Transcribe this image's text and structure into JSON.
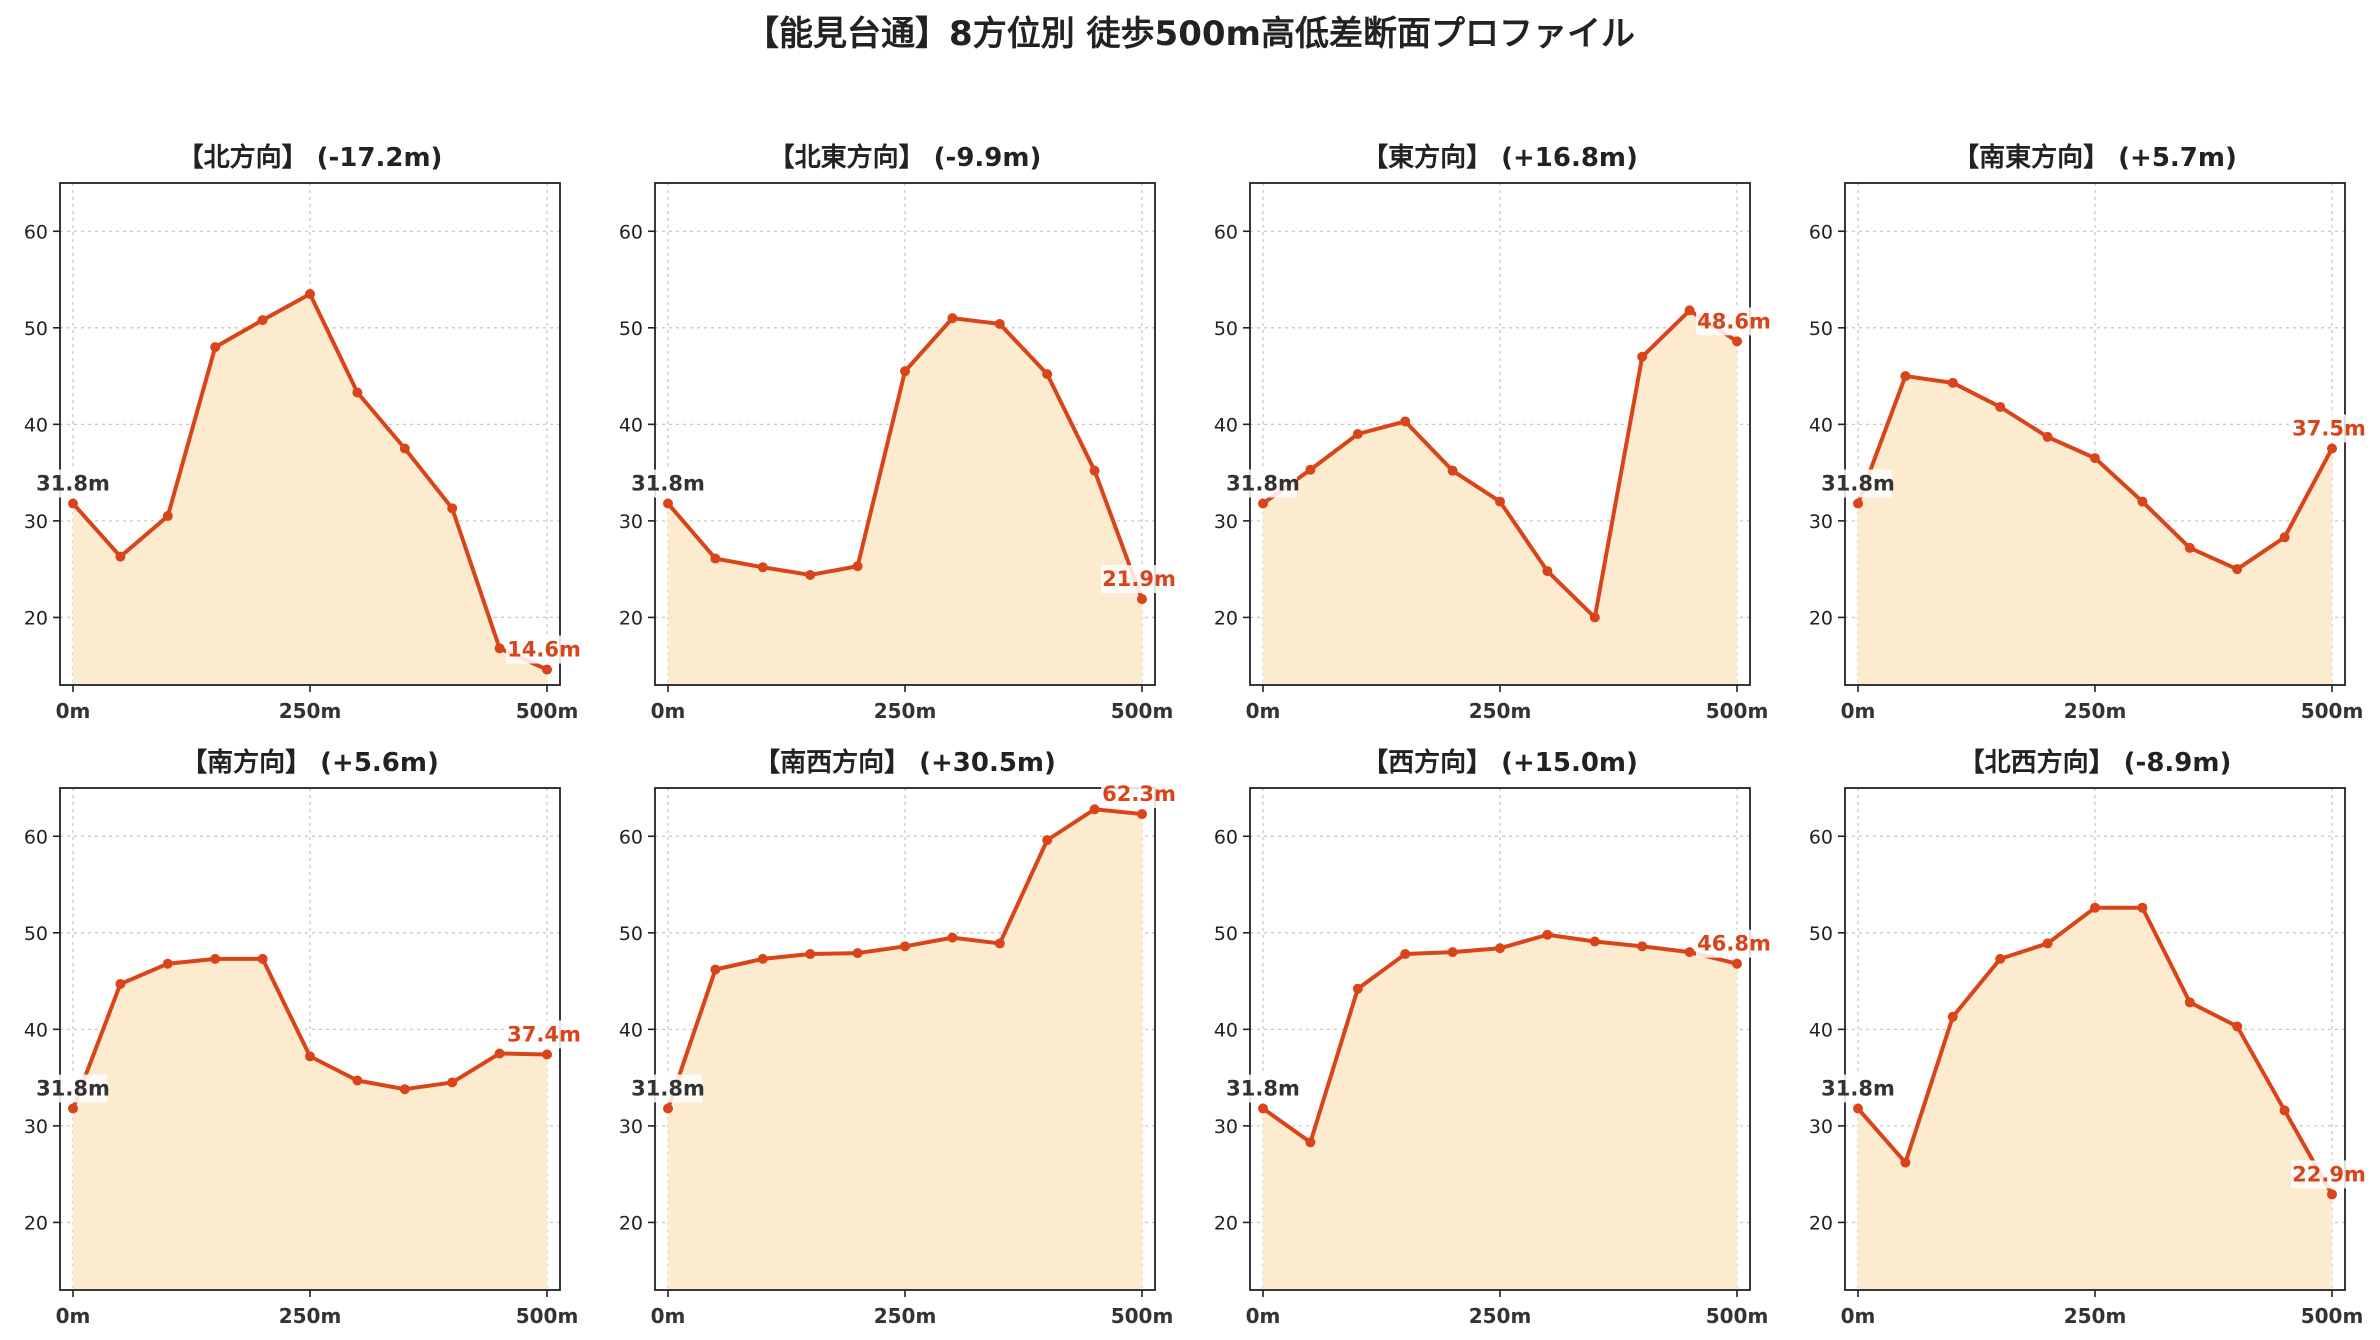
{
  "suptitle": "【能見台通】8方位別 徒歩500m高低差断面プロファイル",
  "colors": {
    "line": "#d9441a",
    "fill": "#fdebd0",
    "end_label": "#d9441a",
    "start_label": "#333333"
  },
  "chart_data": [
    {
      "type": "area",
      "title": "【北方向】 (-17.2m)",
      "start_label": "31.8m",
      "end_label": "14.6m",
      "x": [
        0,
        50,
        100,
        150,
        200,
        250,
        300,
        350,
        400,
        450,
        500
      ],
      "y": [
        31.8,
        26.3,
        30.5,
        48.0,
        50.8,
        53.5,
        43.3,
        37.5,
        31.3,
        16.8,
        14.6
      ],
      "xticks": [
        "0m",
        "250m",
        "500m"
      ],
      "yticks": [
        20,
        30,
        40,
        50,
        60
      ],
      "ylim": [
        13,
        65
      ],
      "grid": true
    },
    {
      "type": "area",
      "title": "【北東方向】 (-9.9m)",
      "start_label": "31.8m",
      "end_label": "21.9m",
      "x": [
        0,
        50,
        100,
        150,
        200,
        250,
        300,
        350,
        400,
        450,
        500
      ],
      "y": [
        31.8,
        26.1,
        25.2,
        24.4,
        25.3,
        45.5,
        51.0,
        50.4,
        45.2,
        35.2,
        21.9
      ],
      "xticks": [
        "0m",
        "250m",
        "500m"
      ],
      "yticks": [
        20,
        30,
        40,
        50,
        60
      ],
      "ylim": [
        13,
        65
      ],
      "grid": true
    },
    {
      "type": "area",
      "title": "【東方向】 (+16.8m)",
      "start_label": "31.8m",
      "end_label": "48.6m",
      "x": [
        0,
        50,
        100,
        150,
        200,
        250,
        300,
        350,
        400,
        450,
        500
      ],
      "y": [
        31.8,
        35.3,
        39.0,
        40.3,
        35.2,
        32.0,
        24.8,
        20.0,
        47.0,
        51.8,
        48.6
      ],
      "xticks": [
        "0m",
        "250m",
        "500m"
      ],
      "yticks": [
        20,
        30,
        40,
        50,
        60
      ],
      "ylim": [
        13,
        65
      ],
      "grid": true
    },
    {
      "type": "area",
      "title": "【南東方向】 (+5.7m)",
      "start_label": "31.8m",
      "end_label": "37.5m",
      "x": [
        0,
        50,
        100,
        150,
        200,
        250,
        300,
        350,
        400,
        450,
        500
      ],
      "y": [
        31.8,
        45.0,
        44.3,
        41.8,
        38.7,
        36.5,
        32.0,
        27.2,
        25.0,
        28.3,
        37.5
      ],
      "xticks": [
        "0m",
        "250m",
        "500m"
      ],
      "yticks": [
        20,
        30,
        40,
        50,
        60
      ],
      "ylim": [
        13,
        65
      ],
      "grid": true
    },
    {
      "type": "area",
      "title": "【南方向】 (+5.6m)",
      "start_label": "31.8m",
      "end_label": "37.4m",
      "x": [
        0,
        50,
        100,
        150,
        200,
        250,
        300,
        350,
        400,
        450,
        500
      ],
      "y": [
        31.8,
        44.7,
        46.8,
        47.3,
        47.3,
        37.2,
        34.7,
        33.8,
        34.5,
        37.5,
        37.4
      ],
      "xticks": [
        "0m",
        "250m",
        "500m"
      ],
      "yticks": [
        20,
        30,
        40,
        50,
        60
      ],
      "ylim": [
        13,
        65
      ],
      "grid": true
    },
    {
      "type": "area",
      "title": "【南西方向】 (+30.5m)",
      "start_label": "31.8m",
      "end_label": "62.3m",
      "x": [
        0,
        50,
        100,
        150,
        200,
        250,
        300,
        350,
        400,
        450,
        500
      ],
      "y": [
        31.8,
        46.2,
        47.3,
        47.8,
        47.9,
        48.6,
        49.5,
        48.9,
        59.6,
        62.8,
        62.3
      ],
      "xticks": [
        "0m",
        "250m",
        "500m"
      ],
      "yticks": [
        20,
        30,
        40,
        50,
        60
      ],
      "ylim": [
        13,
        65
      ],
      "grid": true
    },
    {
      "type": "area",
      "title": "【西方向】 (+15.0m)",
      "start_label": "31.8m",
      "end_label": "46.8m",
      "x": [
        0,
        50,
        100,
        150,
        200,
        250,
        300,
        350,
        400,
        450,
        500
      ],
      "y": [
        31.8,
        28.3,
        44.2,
        47.8,
        48.0,
        48.4,
        49.8,
        49.1,
        48.6,
        48.0,
        46.8
      ],
      "xticks": [
        "0m",
        "250m",
        "500m"
      ],
      "yticks": [
        20,
        30,
        40,
        50,
        60
      ],
      "ylim": [
        13,
        65
      ],
      "grid": true
    },
    {
      "type": "area",
      "title": "【北西方向】 (-8.9m)",
      "start_label": "31.8m",
      "end_label": "22.9m",
      "x": [
        0,
        50,
        100,
        150,
        200,
        250,
        300,
        350,
        400,
        450,
        500
      ],
      "y": [
        31.8,
        26.2,
        41.3,
        47.3,
        48.9,
        52.6,
        52.6,
        42.8,
        40.3,
        31.6,
        22.9
      ],
      "xticks": [
        "0m",
        "250m",
        "500m"
      ],
      "yticks": [
        20,
        30,
        40,
        50,
        60
      ],
      "ylim": [
        13,
        65
      ],
      "grid": true
    }
  ]
}
